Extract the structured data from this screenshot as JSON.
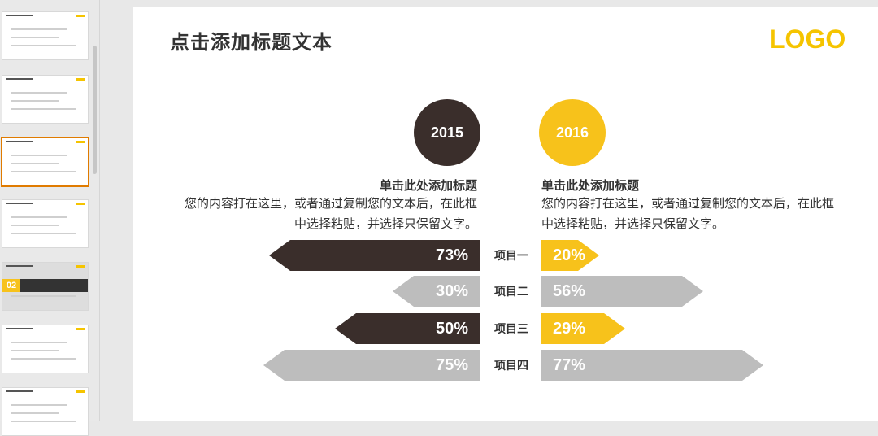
{
  "slide": {
    "title": "点击添加标题文本",
    "logo": "LOGO",
    "year_left": "2015",
    "year_right": "2016",
    "left_heading": "单击此处添加标题",
    "left_body": "您的内容打在这里，或者通过复制您的文本后，在此框中选择粘贴，并选择只保留文字。",
    "right_heading": "单击此处添加标题",
    "right_body": "您的内容打在这里，或者通过复制您的文本后，在此框中选择粘贴，并选择只保留文字。",
    "rows": [
      {
        "item": "项目一",
        "left_label": "73%",
        "left_value": 73,
        "left_color": "dark",
        "right_label": "20%",
        "right_value": 20,
        "right_color": "yellow"
      },
      {
        "item": "项目二",
        "left_label": "30%",
        "left_value": 30,
        "left_color": "gray",
        "right_label": "56%",
        "right_value": 56,
        "right_color": "gray"
      },
      {
        "item": "项目三",
        "left_label": "50%",
        "left_value": 50,
        "left_color": "dark",
        "right_label": "29%",
        "right_value": 29,
        "right_color": "yellow"
      },
      {
        "item": "项目四",
        "left_label": "75%",
        "left_value": 75,
        "left_color": "gray",
        "right_label": "77%",
        "right_value": 77,
        "right_color": "gray"
      }
    ],
    "colors": {
      "dark": "#3a2e2b",
      "yellow": "#f7c21b",
      "gray": "#bdbdbd",
      "logo": "#f5c400"
    }
  },
  "sidebar": {
    "thumbnails": [
      {
        "selected": false
      },
      {
        "selected": false
      },
      {
        "selected": true
      },
      {
        "selected": false
      },
      {
        "selected": false,
        "number": "02"
      },
      {
        "selected": false
      },
      {
        "selected": false
      }
    ]
  }
}
